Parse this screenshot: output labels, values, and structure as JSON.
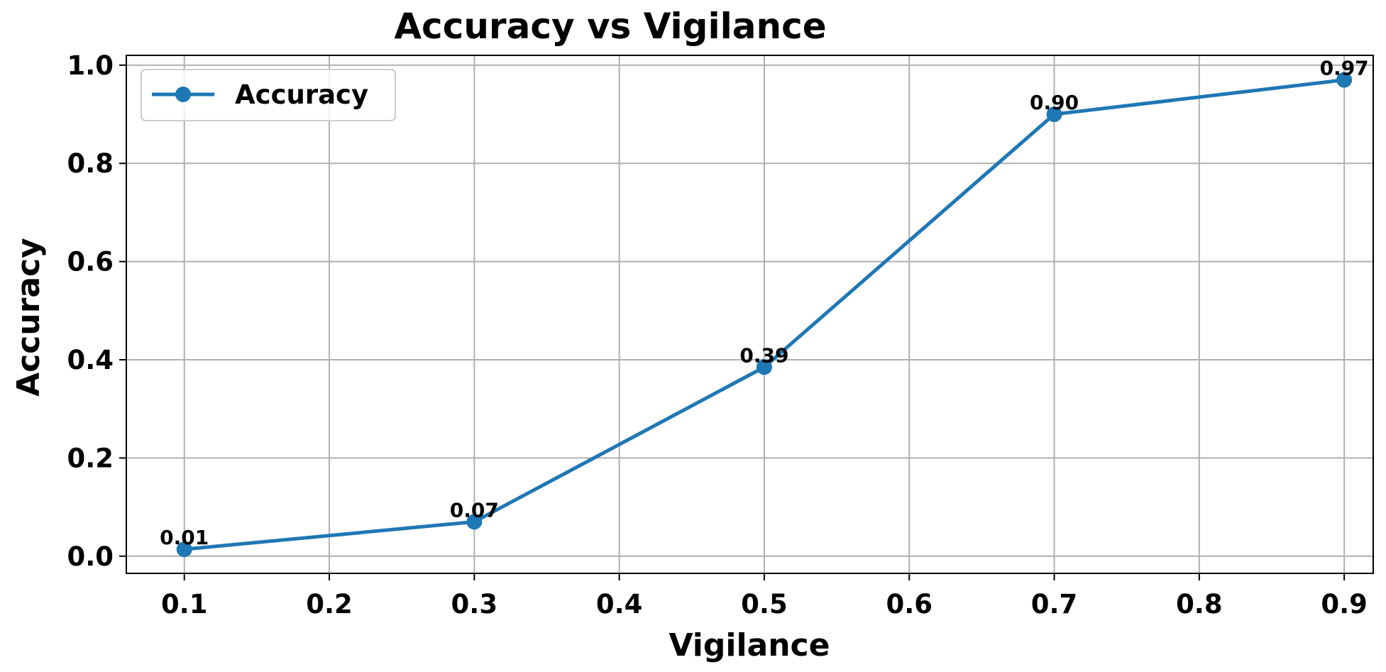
{
  "chart_data": {
    "type": "line",
    "title": "Accuracy vs Vigilance",
    "xlabel": "Vigilance",
    "ylabel": "Accuracy",
    "xlim": [
      0.06,
      0.92
    ],
    "ylim": [
      -0.035,
      1.02
    ],
    "xticks": [
      0.1,
      0.2,
      0.3,
      0.4,
      0.5,
      0.6,
      0.7,
      0.8,
      0.9
    ],
    "xtick_labels": [
      "0.1",
      "0.2",
      "0.3",
      "0.4",
      "0.5",
      "0.6",
      "0.7",
      "0.8",
      "0.9"
    ],
    "yticks": [
      0.0,
      0.2,
      0.4,
      0.6,
      0.8,
      1.0
    ],
    "ytick_labels": [
      "0.0",
      "0.2",
      "0.4",
      "0.6",
      "0.8",
      "1.0"
    ],
    "grid": true,
    "legend_position": "top-left",
    "series": [
      {
        "name": "Accuracy",
        "color": "#1f77b4",
        "marker": "circle",
        "x": [
          0.1,
          0.3,
          0.5,
          0.7,
          0.9
        ],
        "y": [
          0.014,
          0.07,
          0.385,
          0.9,
          0.97
        ],
        "labels": [
          "0.01",
          "0.07",
          "0.39",
          "0.90",
          "0.97"
        ]
      }
    ]
  }
}
